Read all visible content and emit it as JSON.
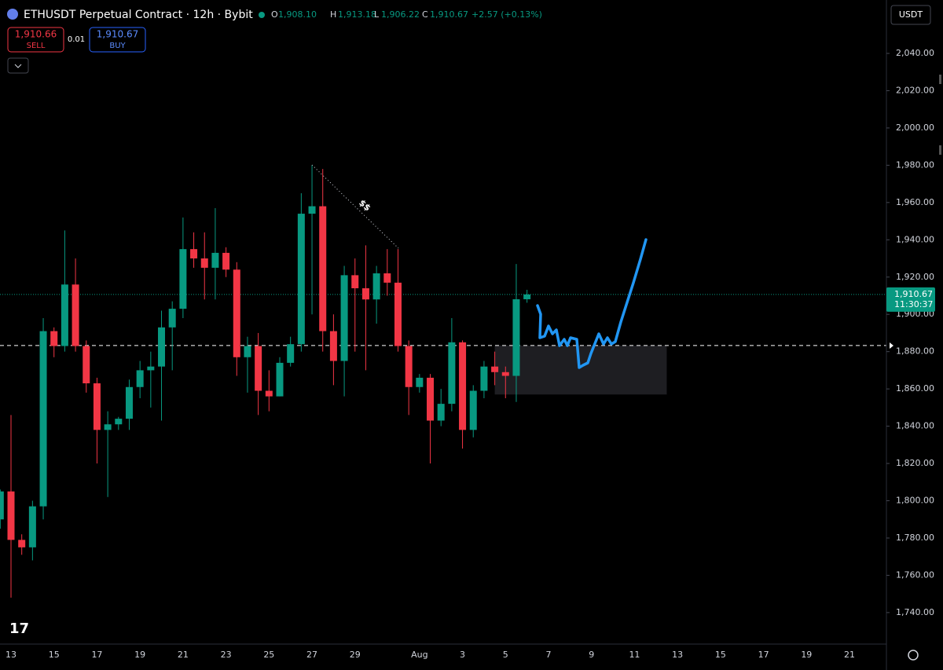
{
  "header": {
    "symbol": "ETHUSDT Perpetual Contract · 12h · Bybit",
    "ohlc": [
      {
        "label": "O",
        "value": "1,908.10"
      },
      {
        "label": "H",
        "value": "1,913.18"
      },
      {
        "label": "L",
        "value": "1,906.22"
      },
      {
        "label": "C",
        "value": "1,910.67"
      }
    ],
    "change": "+2.57 (+0.13%)",
    "sell": {
      "price": "1,910.66",
      "label": "SELL"
    },
    "spread": "0.01",
    "buy": {
      "price": "1,910.67",
      "label": "BUY"
    },
    "currency": "USDT"
  },
  "chart_data": {
    "type": "candlestick",
    "categories": [
      null,
      "13",
      null,
      null,
      null,
      "15",
      null,
      null,
      null,
      "17",
      null,
      null,
      null,
      "19",
      null,
      null,
      null,
      "21",
      null,
      null,
      null,
      "23",
      null,
      null,
      null,
      "25",
      null,
      null,
      null,
      "27",
      null,
      null,
      null,
      "29",
      null,
      null,
      null,
      null,
      null,
      "Aug",
      null,
      null,
      null,
      "3",
      null,
      null,
      null,
      "5",
      null,
      null,
      null,
      "7",
      null,
      null,
      null,
      "9",
      null,
      null,
      null,
      "11",
      null,
      null,
      null,
      "13",
      null,
      null,
      null,
      "15",
      null,
      null,
      null,
      "17",
      null,
      null,
      null,
      "19",
      null,
      null,
      null,
      "21",
      null,
      null
    ],
    "open": [
      1790,
      1805,
      1779,
      1775,
      1797,
      1891,
      1883,
      1916,
      1883,
      1863,
      1838,
      1841,
      1844,
      1861,
      1870,
      1872,
      1893,
      1903,
      1935,
      1930,
      1925,
      1933,
      1924,
      1877,
      1883,
      1859,
      1856,
      1874,
      1884,
      1954,
      1958,
      1891,
      1875,
      1921,
      1914,
      1908,
      1922,
      1917,
      1883,
      1861,
      1866,
      1843,
      1852,
      1885,
      1838,
      1859,
      1872,
      1869,
      1867,
      1908.1,
      null,
      null,
      null,
      null,
      null,
      null,
      null,
      null,
      null,
      null,
      null,
      null,
      null,
      null,
      null,
      null,
      null,
      null,
      null,
      null,
      null,
      null,
      null,
      null,
      null,
      null,
      null,
      null,
      null,
      null,
      null,
      null
    ],
    "high": [
      1806,
      1846,
      1782,
      1800,
      1898,
      1893,
      1945,
      1930,
      1886,
      1866,
      1848,
      1845,
      1865,
      1875,
      1880,
      1902,
      1907,
      1952,
      1944,
      1944,
      1957,
      1936,
      1928,
      1888,
      1890,
      1870,
      1877,
      1888,
      1965,
      1980,
      1978,
      1900,
      1926,
      1930,
      1937,
      1926,
      1935,
      1935,
      1886,
      1868,
      1868,
      1860,
      1898,
      1886,
      1862,
      1875,
      1880,
      1872,
      1927,
      1913.18,
      null,
      null,
      null,
      null,
      null,
      null,
      null,
      null,
      null,
      null,
      null,
      null,
      null,
      null,
      null,
      null,
      null,
      null,
      null,
      null,
      null,
      null,
      null,
      null,
      null,
      null,
      null,
      null,
      null,
      null,
      null,
      null
    ],
    "low": [
      1785,
      1748,
      1771,
      1768,
      1790,
      1877,
      1880,
      1880,
      1858,
      1820,
      1802,
      1838,
      1838,
      1855,
      1850,
      1843,
      1870,
      1898,
      1925,
      1908,
      1908,
      1920,
      1867,
      1858,
      1846,
      1848,
      1856,
      1872,
      1880,
      1900,
      1880,
      1862,
      1856,
      1880,
      1870,
      1895,
      1910,
      1880,
      1846,
      1858,
      1820,
      1840,
      1848,
      1828,
      1834,
      1855,
      1862,
      1855,
      1853,
      1906.22,
      null,
      null,
      null,
      null,
      null,
      null,
      null,
      null,
      null,
      null,
      null,
      null,
      null,
      null,
      null,
      null,
      null,
      null,
      null,
      null,
      null,
      null,
      null,
      null,
      null,
      null,
      null,
      null,
      null,
      null,
      null,
      null
    ],
    "close": [
      1805,
      1779,
      1775,
      1797,
      1891,
      1883,
      1916,
      1883,
      1863,
      1838,
      1841,
      1844,
      1861,
      1870,
      1872,
      1893,
      1903,
      1935,
      1930,
      1925,
      1933,
      1924,
      1877,
      1883,
      1859,
      1856,
      1874,
      1884,
      1954,
      1958,
      1891,
      1875,
      1921,
      1914,
      1908,
      1922,
      1917,
      1883,
      1861,
      1866,
      1843,
      1852,
      1885,
      1838,
      1859,
      1872,
      1869,
      1867,
      1908.1,
      1910.67,
      null,
      null,
      null,
      null,
      null,
      null,
      null,
      null,
      null,
      null,
      null,
      null,
      null,
      null,
      null,
      null,
      null,
      null,
      null,
      null,
      null,
      null,
      null,
      null,
      null,
      null,
      null,
      null,
      null,
      null,
      null,
      null
    ],
    "up_color": "#089981",
    "down_color": "#f23645",
    "ylim": [
      1723.1,
      2068.65
    ],
    "yticks": [
      {
        "value": 1740,
        "label": "1,740.00"
      },
      {
        "value": 1760,
        "label": "1,760.00"
      },
      {
        "value": 1780,
        "label": "1,780.00"
      },
      {
        "value": 1800,
        "label": "1,800.00"
      },
      {
        "value": 1820,
        "label": "1,820.00"
      },
      {
        "value": 1840,
        "label": "1,840.00"
      },
      {
        "value": 1860,
        "label": "1,860.00"
      },
      {
        "value": 1880,
        "label": "1,880.00"
      },
      {
        "value": 1900,
        "label": "1,900.00"
      },
      {
        "value": 1920,
        "label": "1,920.00"
      },
      {
        "value": 1940,
        "label": "1,940.00"
      },
      {
        "value": 1960,
        "label": "1,960.00"
      },
      {
        "value": 1980,
        "label": "1,980.00"
      },
      {
        "value": 2000,
        "label": "2,000.00"
      },
      {
        "value": 2020,
        "label": "2,020.00"
      },
      {
        "value": 2040,
        "label": "2,040.00"
      }
    ],
    "last_price": {
      "value": 1910.67,
      "label": "1,910.67",
      "countdown": "11:30:37"
    },
    "horizontal_line": 1883.3,
    "zone": {
      "top": 1883.3,
      "bottom": 1857,
      "from": 46,
      "to": 62
    }
  }
}
